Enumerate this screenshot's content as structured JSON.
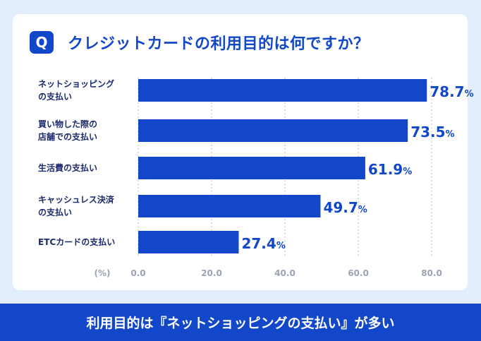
{
  "question": {
    "badge": "Q",
    "title": "クレジットカードの利用目的は何ですか？"
  },
  "chart_data": {
    "type": "bar",
    "orientation": "horizontal",
    "categories": [
      [
        "ネットショッピング",
        "の支払い"
      ],
      [
        "買い物した際の",
        "店舗での支払い"
      ],
      [
        "生活費の支払い"
      ],
      [
        "キャッシュレス決済",
        "の支払い"
      ],
      [
        "ETCカードの支払い"
      ]
    ],
    "values": [
      78.7,
      73.5,
      61.9,
      49.7,
      27.4
    ],
    "value_labels": [
      "78.7",
      "73.5",
      "61.9",
      "49.7",
      "27.4"
    ],
    "unit_symbol": "%",
    "xlim": [
      0,
      80
    ],
    "ticks": [
      "0.0",
      "20.0",
      "40.0",
      "60.0",
      "80.0"
    ],
    "xlabel": "(%)",
    "grid": true,
    "bar_color": "#1147c8"
  },
  "banner": {
    "text": "利用目的は『ネットショッピングの支払い』が多い"
  }
}
